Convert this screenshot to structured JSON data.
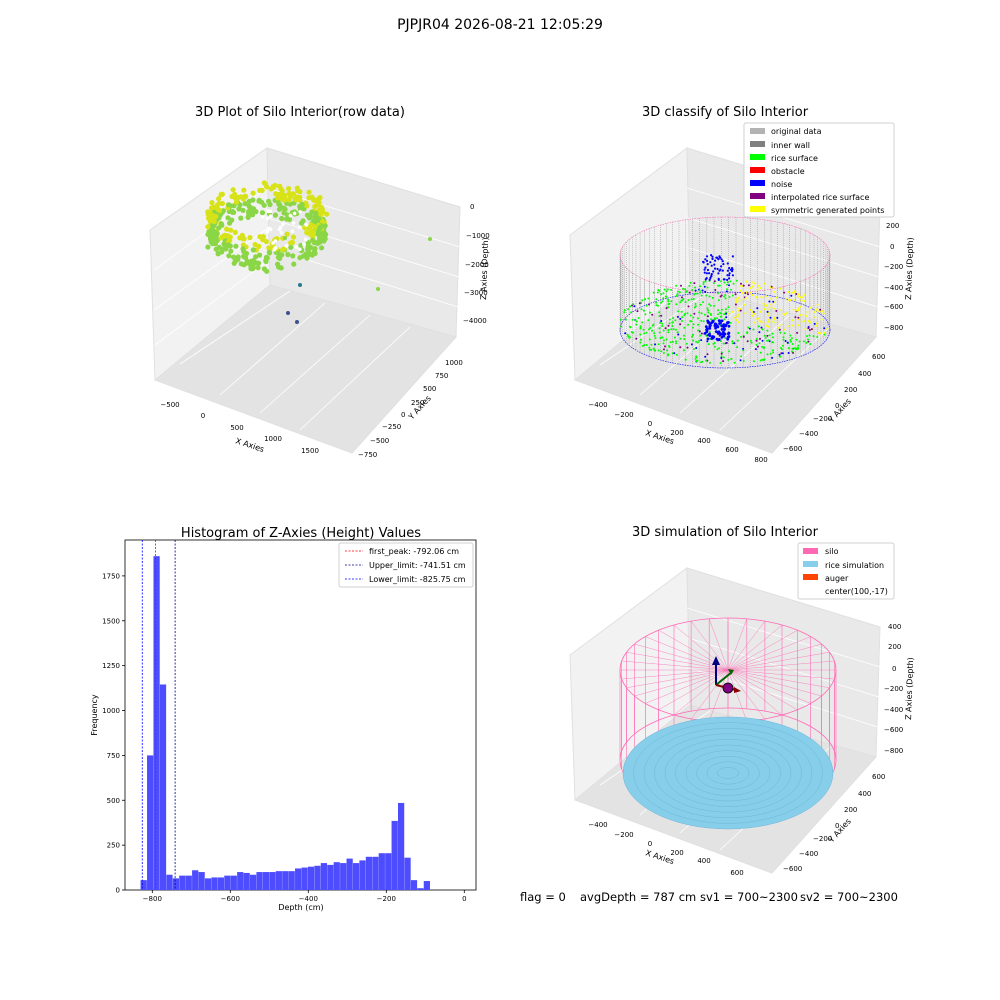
{
  "figure_title": "PJPJR04 2026-08-21 12:05:29",
  "footer": {
    "flag": "flag = 0",
    "avg_depth": "avgDepth = 787 cm",
    "sv1": "sv1 = 700~2300",
    "sv2": "sv2 = 700~2300"
  },
  "colors": {
    "raw_green": "#8bd646",
    "raw_yellow": "#d8e219",
    "original": "#b3b3b3",
    "inner_wall": "#808080",
    "rice_surface": "#00ff00",
    "obstacle": "#ff0000",
    "noise": "#0000ff",
    "interpolated": "#800080",
    "symmetric": "#ffff00",
    "silo": "#ff69b4",
    "rice_sim": "#87ceeb",
    "auger": "#ff4500",
    "hist_bar": "#4d4dff"
  },
  "chart_data": [
    {
      "type": "scatter",
      "panel": "top-left",
      "title": "3D Plot of Silo Interior(row data)",
      "xlabel": "X Axies",
      "ylabel": "Y Axies",
      "zlabel": "Z Axies (Depth)",
      "x_ticks": [
        "−500",
        "0",
        "500",
        "1000",
        "1500"
      ],
      "y_ticks": [
        "1000",
        "750",
        "500",
        "250",
        "0",
        "−250",
        "−500",
        "−750"
      ],
      "z_ticks": [
        "0",
        "−1000",
        "−2000",
        "−3000",
        "−4000"
      ],
      "description_points": "ring of points (yellow-green) near depth -800, plus a few outliers"
    },
    {
      "type": "scatter",
      "panel": "top-right",
      "title": "3D classify of Silo Interior",
      "xlabel": "X Axies",
      "ylabel": "Y Axies",
      "zlabel": "Z Axies (Depth)",
      "x_ticks": [
        "−400",
        "−200",
        "0",
        "200",
        "400",
        "600",
        "800"
      ],
      "y_ticks": [
        "600",
        "400",
        "200",
        "0",
        "−200",
        "−400",
        "−600"
      ],
      "z_ticks": [
        "200",
        "0",
        "−200",
        "−400",
        "−600",
        "−800"
      ],
      "z_top_tick_partial": "0",
      "legend": [
        "original data",
        "inner wall",
        "rice surface",
        "obstacle",
        "noise",
        "interpolated rice surface",
        "symmetric generated points"
      ],
      "legend_position": "top-right"
    },
    {
      "type": "bar",
      "panel": "bottom-left",
      "title": "Histogram of Z-Axies (Height) Values",
      "xlabel": "Depth (cm)",
      "ylabel": "Frequency",
      "xlim": [
        -870,
        30
      ],
      "ylim": [
        0,
        1950
      ],
      "x_ticks": [
        -800,
        -600,
        -400,
        -200,
        0
      ],
      "x_tick_labels": [
        "−800",
        "−600",
        "−400",
        "−200",
        "0"
      ],
      "y_ticks": [
        0,
        250,
        500,
        750,
        1000,
        1250,
        1500,
        1750
      ],
      "bin_start": -830,
      "bin_width": 16.5,
      "values": [
        55,
        750,
        1860,
        1145,
        85,
        65,
        80,
        80,
        110,
        100,
        65,
        70,
        70,
        80,
        80,
        100,
        95,
        85,
        100,
        100,
        100,
        105,
        105,
        105,
        120,
        125,
        130,
        135,
        150,
        140,
        155,
        150,
        175,
        150,
        165,
        185,
        185,
        205,
        205,
        385,
        485,
        180,
        55,
        10,
        50
      ],
      "vlines": [
        {
          "x": -792.06,
          "label": "first_peak: -792.06 cm",
          "color": "#ff0000"
        },
        {
          "x": -741.51,
          "label": "Upper_limit: -741.51 cm",
          "color": "#00008b"
        },
        {
          "x": -825.75,
          "label": "Lower_limit: -825.75 cm",
          "color": "#0000ff"
        }
      ],
      "legend_position": "top-right"
    },
    {
      "type": "scatter",
      "panel": "bottom-right",
      "title": "3D simulation of Silo Interior",
      "xlabel": "X Axies",
      "ylabel": "Y Axies",
      "zlabel": "Z Axies (Depth)",
      "x_ticks": [
        "−400",
        "−200",
        "0",
        "200",
        "400",
        "600"
      ],
      "y_ticks": [
        "600",
        "400",
        "200",
        "0",
        "−200",
        "−400",
        "−600"
      ],
      "z_ticks": [
        "400",
        "200",
        "0",
        "−200",
        "−400",
        "−600",
        "−800"
      ],
      "legend": [
        "silo",
        "rice simulation",
        "auger",
        "center(100,-17)"
      ],
      "legend_position": "top-right"
    }
  ]
}
